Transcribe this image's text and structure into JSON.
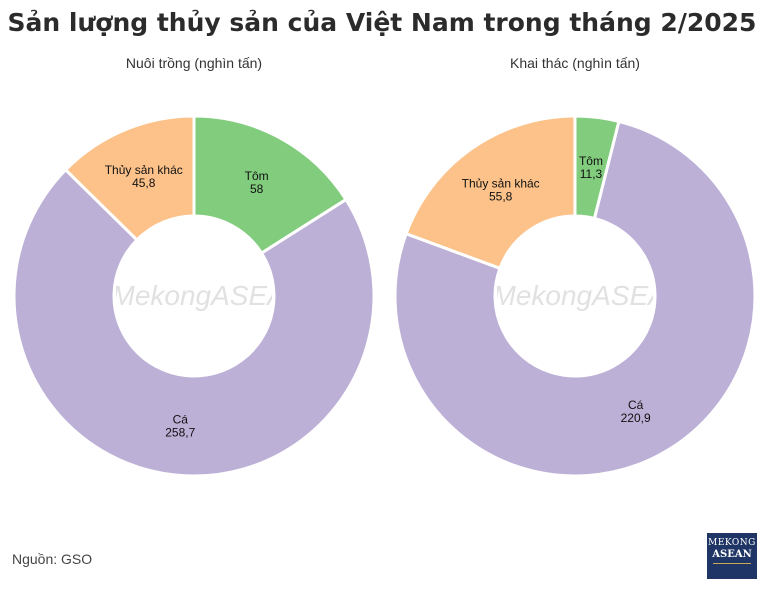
{
  "title": "Sản lượng thủy sản của Việt Nam trong tháng 2/2025",
  "source": "Nguồn: GSO",
  "watermark": "www.MekongASEAN.vn",
  "logo": {
    "line1": "MEKONG",
    "line2": "ASEAN"
  },
  "chart_data": [
    {
      "type": "pie",
      "style": "donut",
      "title": "Nuôi trồng (nghìn tấn)",
      "slices": [
        {
          "label": "Tôm",
          "value": 58,
          "value_label": "58",
          "color": "#82cc7e"
        },
        {
          "label": "Cá",
          "value": 258.7,
          "value_label": "258,7",
          "color": "#bdb0d6"
        },
        {
          "label": "Thủy sản khác",
          "value": 45.8,
          "value_label": "45,8",
          "color": "#fcc28a"
        }
      ]
    },
    {
      "type": "pie",
      "style": "donut",
      "title": "Khai thác (nghìn tấn)",
      "slices": [
        {
          "label": "Tôm",
          "value": 11.3,
          "value_label": "11,3",
          "color": "#82cc7e"
        },
        {
          "label": "Cá",
          "value": 220.9,
          "value_label": "220,9",
          "color": "#bdb0d6"
        },
        {
          "label": "Thủy sản khác",
          "value": 55.8,
          "value_label": "55,8",
          "color": "#fcc28a"
        }
      ]
    }
  ]
}
